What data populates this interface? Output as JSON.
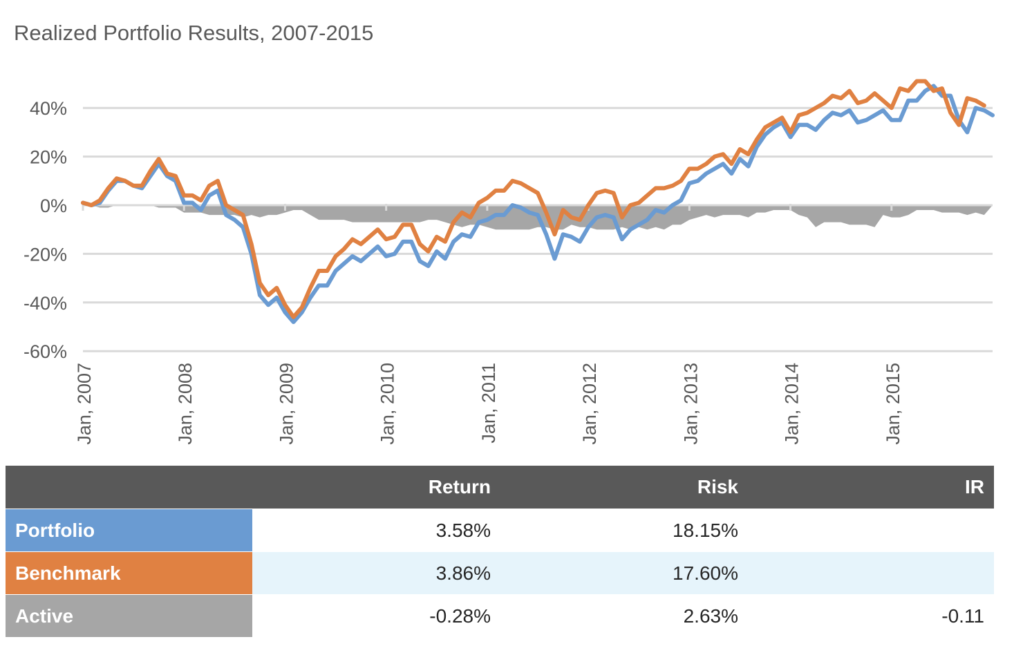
{
  "title": "Realized Portfolio Results, 2007-2015",
  "chart_data": {
    "type": "line",
    "title": "Realized Portfolio Results, 2007-2015",
    "ylim": [
      -60,
      50
    ],
    "yticks": [
      "40%",
      "20%",
      "0%",
      "-20%",
      "-40%",
      "-60%"
    ],
    "ytick_values": [
      40,
      20,
      0,
      -20,
      -40,
      -60
    ],
    "xticks": [
      "Jan, 2007",
      "Jan, 2008",
      "Jan, 2009",
      "Jan, 2010",
      "Jan, 2011",
      "Jan, 2012",
      "Jan, 2013",
      "Jan, 2014",
      "Jan, 2015"
    ],
    "x_start": "Jan, 2007",
    "x_frequency": "monthly",
    "grid": true,
    "colors": {
      "portfolio": "#6a9bd2",
      "benchmark": "#e08142",
      "active": "#a6a6a6"
    },
    "series": [
      {
        "name": "Portfolio",
        "type": "line",
        "values": [
          1,
          0,
          1,
          6,
          10,
          10,
          8,
          7,
          12,
          17,
          12,
          10,
          1,
          1,
          -2,
          4,
          6,
          -4,
          -6,
          -9,
          -20,
          -37,
          -41,
          -38,
          -44,
          -48,
          -44,
          -38,
          -33,
          -33,
          -27,
          -24,
          -21,
          -23,
          -20,
          -17,
          -21,
          -20,
          -15,
          -15,
          -23,
          -25,
          -19,
          -22,
          -15,
          -12,
          -13,
          -7,
          -6,
          -4,
          -4,
          0,
          -1,
          -3,
          -4,
          -12,
          -22,
          -12,
          -13,
          -15,
          -9,
          -5,
          -4,
          -5,
          -14,
          -10,
          -8,
          -6,
          -2,
          -3,
          0,
          2,
          9,
          10,
          13,
          15,
          17,
          13,
          19,
          16,
          24,
          29,
          32,
          34,
          28,
          33,
          33,
          31,
          35,
          38,
          37,
          39,
          34,
          35,
          37,
          39,
          35,
          35,
          43,
          43,
          47,
          49,
          45,
          45,
          35,
          30,
          40,
          39,
          37
        ]
      },
      {
        "name": "Benchmark",
        "type": "line",
        "values": [
          1,
          0,
          2,
          7,
          11,
          10,
          8,
          8,
          14,
          19,
          13,
          12,
          4,
          4,
          2,
          8,
          10,
          0,
          -2,
          -4,
          -16,
          -32,
          -37,
          -34,
          -41,
          -46,
          -42,
          -34,
          -27,
          -27,
          -21,
          -18,
          -14,
          -16,
          -13,
          -10,
          -14,
          -13,
          -8,
          -8,
          -16,
          -19,
          -13,
          -15,
          -7,
          -3,
          -5,
          1,
          3,
          6,
          6,
          10,
          9,
          7,
          5,
          -3,
          -12,
          -2,
          -5,
          -6,
          0,
          5,
          6,
          5,
          -5,
          0,
          1,
          4,
          7,
          7,
          8,
          10,
          15,
          15,
          17,
          20,
          21,
          17,
          23,
          21,
          27,
          32,
          34,
          36,
          30,
          37,
          38,
          40,
          42,
          45,
          44,
          47,
          42,
          43,
          46,
          43,
          40,
          48,
          47,
          51,
          51,
          47,
          48,
          38,
          33,
          44,
          43,
          41
        ]
      },
      {
        "name": "Active",
        "type": "area",
        "values": [
          0,
          0,
          -1,
          -1,
          0,
          0,
          0,
          0,
          0,
          -1,
          -1,
          -1,
          -3,
          -3,
          -3,
          -4,
          -4,
          -4,
          -4,
          -5,
          -4,
          -5,
          -4,
          -4,
          -3,
          -2,
          -2,
          -4,
          -6,
          -6,
          -6,
          -6,
          -7,
          -7,
          -7,
          -7,
          -7,
          -7,
          -7,
          -7,
          -7,
          -6,
          -6,
          -7,
          -8,
          -9,
          -8,
          -8,
          -9,
          -10,
          -10,
          -10,
          -10,
          -10,
          -9,
          -9,
          -10,
          -10,
          -8,
          -9,
          -9,
          -10,
          -10,
          -10,
          -9,
          -10,
          -9,
          -10,
          -9,
          -10,
          -8,
          -8,
          -6,
          -5,
          -4,
          -5,
          -4,
          -4,
          -4,
          -5,
          -3,
          -3,
          -2,
          -2,
          -2,
          -4,
          -5,
          -9,
          -7,
          -7,
          -7,
          -8,
          -8,
          -8,
          -9,
          -4,
          -5,
          -5,
          -4,
          -2,
          -2,
          -2,
          -3,
          -3,
          -3,
          -4,
          -3,
          -4
        ]
      }
    ]
  },
  "table": {
    "headers": [
      "",
      "Return",
      "Risk",
      "IR"
    ],
    "rows": [
      {
        "label": "Portfolio",
        "return": "3.58%",
        "risk": "18.15%",
        "ir": "",
        "color": "#6a9bd2"
      },
      {
        "label": "Benchmark",
        "return": "3.86%",
        "risk": "17.60%",
        "ir": "",
        "color": "#e08142"
      },
      {
        "label": "Active",
        "return": "-0.28%",
        "risk": "2.63%",
        "ir": "-0.11",
        "color": "#a6a6a6"
      }
    ]
  }
}
